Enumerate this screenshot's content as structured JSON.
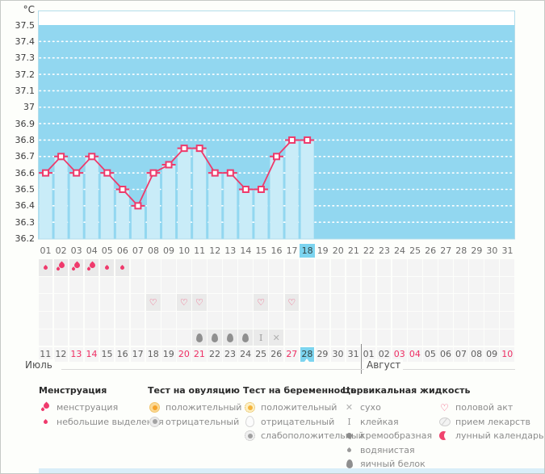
{
  "units_label": "°C",
  "months": {
    "july": "Июль",
    "august": "Август"
  },
  "current_cycle_day": 18,
  "colors": {
    "accent_pink": "#ee3a6b",
    "chart_background": "#92d7f0",
    "bar_fill": "#c9ecf8",
    "highlight_blue": "#7cd4ef",
    "red_date": "#ee2e63",
    "gridline": "#ffffff"
  },
  "chart_data": {
    "type": "line",
    "title": "",
    "ylabel": "°C",
    "ylim": [
      36.2,
      37.5
    ],
    "y_ticks": [
      "37.5",
      "37.4",
      "37.3",
      "37.2",
      "37.1",
      "37",
      "36.9",
      "36.8",
      "36.7",
      "36.6",
      "36.5",
      "36.4",
      "36.3",
      "36.2"
    ],
    "categories": [
      "01",
      "02",
      "03",
      "04",
      "05",
      "06",
      "07",
      "08",
      "09",
      "10",
      "11",
      "12",
      "13",
      "14",
      "15",
      "16",
      "17",
      "18",
      "19",
      "20",
      "21",
      "22",
      "23",
      "24",
      "25",
      "26",
      "27",
      "28",
      "29",
      "30",
      "31"
    ],
    "values": [
      36.6,
      36.7,
      36.6,
      36.7,
      36.6,
      36.5,
      36.4,
      36.6,
      36.65,
      36.75,
      36.75,
      36.6,
      36.6,
      36.5,
      36.5,
      36.7,
      36.8,
      36.8
    ],
    "grid": "dotted-white",
    "legend_position": "bottom"
  },
  "event_grid": {
    "rows": [
      {
        "name": "menstruation",
        "events": [
          {
            "day": 1,
            "icon": "drop-small"
          },
          {
            "day": 2,
            "icon": "drops-large"
          },
          {
            "day": 3,
            "icon": "drops-large"
          },
          {
            "day": 4,
            "icon": "drops-large"
          },
          {
            "day": 5,
            "icon": "drop-small"
          },
          {
            "day": 6,
            "icon": "drop-small"
          }
        ]
      },
      {
        "name": "ovulation-test",
        "events": []
      },
      {
        "name": "intercourse",
        "events": [
          {
            "day": 8,
            "icon": "heart"
          },
          {
            "day": 10,
            "icon": "heart"
          },
          {
            "day": 11,
            "icon": "heart"
          },
          {
            "day": 15,
            "icon": "heart"
          },
          {
            "day": 17,
            "icon": "heart"
          }
        ]
      },
      {
        "name": "pregnancy-test",
        "events": []
      },
      {
        "name": "cervical-fluid",
        "events": [
          {
            "day": 11,
            "icon": "eggwhite"
          },
          {
            "day": 12,
            "icon": "eggwhite"
          },
          {
            "day": 13,
            "icon": "eggwhite"
          },
          {
            "day": 14,
            "icon": "eggwhite"
          },
          {
            "day": 15,
            "icon": "sticky"
          },
          {
            "day": 16,
            "icon": "dry"
          }
        ]
      }
    ]
  },
  "date_axis": {
    "july": [
      {
        "d": "11"
      },
      {
        "d": "12"
      },
      {
        "d": "13",
        "red": true
      },
      {
        "d": "14",
        "red": true
      },
      {
        "d": "15"
      },
      {
        "d": "16"
      },
      {
        "d": "17"
      },
      {
        "d": "18"
      },
      {
        "d": "19"
      },
      {
        "d": "20",
        "red": true
      },
      {
        "d": "21",
        "red": true
      },
      {
        "d": "22"
      },
      {
        "d": "23"
      },
      {
        "d": "24"
      },
      {
        "d": "25"
      },
      {
        "d": "26"
      },
      {
        "d": "27",
        "red": true
      },
      {
        "d": "28",
        "hl": true
      },
      {
        "d": "29"
      },
      {
        "d": "30"
      },
      {
        "d": "31"
      }
    ],
    "august": [
      {
        "d": "01"
      },
      {
        "d": "02"
      },
      {
        "d": "03",
        "red": true
      },
      {
        "d": "04",
        "red": true
      },
      {
        "d": "05"
      },
      {
        "d": "06"
      },
      {
        "d": "07"
      },
      {
        "d": "08"
      },
      {
        "d": "09"
      },
      {
        "d": "10",
        "red": true
      }
    ]
  },
  "legend": {
    "columns": [
      {
        "header": "Менструация",
        "items": [
          {
            "icon": "drops-large",
            "label": "менструация"
          },
          {
            "icon": "drop-small",
            "label": "небольшие выделения"
          }
        ]
      },
      {
        "header": "Тест на овуляцию",
        "items": [
          {
            "icon": "test-positive",
            "label": "положительный"
          },
          {
            "icon": "test-negative",
            "label": "отрицательный"
          }
        ]
      },
      {
        "header": "Тест на беременность",
        "items": [
          {
            "icon": "preg-positive",
            "label": "положительный"
          },
          {
            "icon": "preg-negative",
            "label": "отрицательный"
          },
          {
            "icon": "preg-weak",
            "label": "слабоположительный"
          }
        ]
      },
      {
        "header": "Цервикальная жидкость",
        "items": [
          {
            "icon": "dry",
            "label": "сухо"
          },
          {
            "icon": "sticky",
            "label": "клейкая"
          },
          {
            "icon": "creamy",
            "label": "кремообразная"
          },
          {
            "icon": "watery",
            "label": "водянистая"
          },
          {
            "icon": "eggwhite",
            "label": "яичный белок"
          }
        ]
      },
      {
        "header": "",
        "items": [
          {
            "icon": "heart",
            "label": "половой акт"
          },
          {
            "icon": "pill",
            "label": "прием лекарств"
          },
          {
            "icon": "moon",
            "label": "лунный календарь"
          }
        ]
      }
    ]
  }
}
